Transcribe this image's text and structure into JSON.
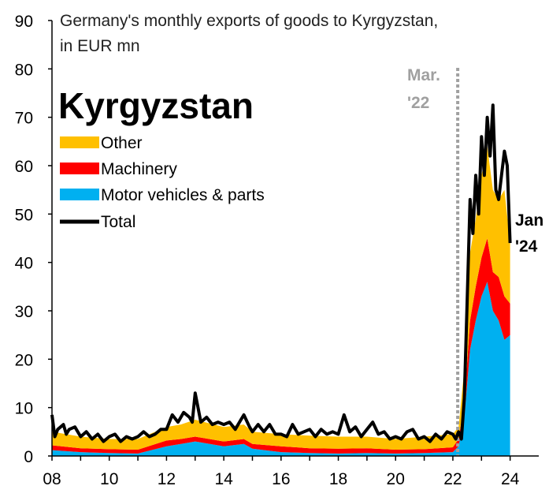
{
  "chart_data": {
    "type": "area",
    "title_lines": [
      "Germany's monthly exports of goods to Kyrgyzstan,",
      "in EUR mn"
    ],
    "panel_title": "Kyrgyzstan",
    "xlabel": "",
    "ylabel": "",
    "xlim": [
      2008,
      2025
    ],
    "ylim": [
      0,
      90
    ],
    "x_ticks": [
      2008,
      2010,
      2012,
      2014,
      2016,
      2018,
      2020,
      2022,
      2024
    ],
    "x_tick_labels": [
      "08",
      "10",
      "12",
      "14",
      "16",
      "18",
      "20",
      "22",
      "24"
    ],
    "y_ticks": [
      0,
      10,
      20,
      30,
      40,
      50,
      60,
      70,
      80,
      90
    ],
    "y_tick_labels": [
      "0",
      "10",
      "20",
      "30",
      "40",
      "50",
      "60",
      "70",
      "80",
      "90"
    ],
    "grid": false,
    "legend_placement": "top-left",
    "legend": [
      {
        "label": "Other",
        "type": "area",
        "color": "#FFC000"
      },
      {
        "label": "Machinery",
        "type": "area",
        "color": "#FF0000"
      },
      {
        "label": "Motor vehicles & parts",
        "type": "area",
        "color": "#00B0F0"
      },
      {
        "label": "Total",
        "type": "line",
        "color": "#000000"
      }
    ],
    "stack_order": [
      "Motor vehicles & parts",
      "Machinery",
      "Other"
    ],
    "series": [
      {
        "name": "Motor vehicles & parts",
        "color": "#00B0F0",
        "x": [
          2008.0,
          2009.0,
          2010.0,
          2011.0,
          2012.0,
          2012.5,
          2013.0,
          2014.0,
          2014.7,
          2015.0,
          2016.0,
          2017.0,
          2018.0,
          2019.0,
          2020.0,
          2021.0,
          2022.0,
          2022.2,
          2022.4,
          2022.6,
          2022.8,
          2023.0,
          2023.2,
          2023.4,
          2023.6,
          2023.8,
          2024.0
        ],
        "values": [
          1.2,
          0.8,
          0.6,
          0.5,
          2.0,
          2.5,
          3.0,
          2.0,
          2.5,
          1.5,
          0.8,
          0.6,
          0.5,
          0.6,
          0.5,
          0.6,
          0.8,
          2.0,
          8.0,
          22.0,
          28.0,
          33.0,
          36.0,
          30.0,
          28.0,
          24.0,
          25.0
        ]
      },
      {
        "name": "Machinery",
        "color": "#FF0000",
        "x": [
          2008.0,
          2009.0,
          2010.0,
          2011.0,
          2012.0,
          2012.5,
          2013.0,
          2014.0,
          2014.7,
          2015.0,
          2016.0,
          2017.0,
          2018.0,
          2019.0,
          2020.0,
          2021.0,
          2022.0,
          2022.2,
          2022.4,
          2022.6,
          2022.8,
          2023.0,
          2023.2,
          2023.4,
          2023.6,
          2023.8,
          2024.0
        ],
        "values": [
          1.0,
          0.8,
          0.8,
          0.8,
          1.2,
          1.0,
          1.0,
          1.0,
          1.0,
          1.0,
          1.2,
          1.0,
          1.0,
          1.0,
          0.8,
          0.8,
          1.0,
          1.5,
          3.0,
          6.0,
          7.0,
          8.0,
          9.0,
          8.0,
          9.0,
          9.0,
          6.5
        ]
      },
      {
        "name": "Other",
        "color": "#FFC000",
        "x": [
          2008.0,
          2009.0,
          2010.0,
          2011.0,
          2012.0,
          2012.5,
          2013.0,
          2014.0,
          2014.7,
          2015.0,
          2016.0,
          2017.0,
          2018.0,
          2019.0,
          2020.0,
          2021.0,
          2022.0,
          2022.2,
          2022.4,
          2022.6,
          2022.8,
          2023.0,
          2023.2,
          2023.4,
          2023.6,
          2023.8,
          2024.0
        ],
        "values": [
          2.8,
          2.4,
          2.1,
          2.2,
          2.8,
          3.0,
          3.5,
          3.0,
          3.0,
          2.5,
          2.5,
          2.6,
          2.5,
          2.4,
          2.2,
          2.6,
          2.7,
          2.5,
          7.0,
          14.0,
          14.0,
          17.0,
          19.0,
          17.0,
          16.0,
          22.0,
          12.5
        ]
      },
      {
        "name": "Total",
        "color": "#000000",
        "x": [
          2008.0,
          2008.1,
          2008.2,
          2008.4,
          2008.5,
          2008.6,
          2008.8,
          2009.0,
          2009.2,
          2009.4,
          2009.6,
          2009.8,
          2010.0,
          2010.2,
          2010.4,
          2010.6,
          2010.8,
          2011.0,
          2011.2,
          2011.4,
          2011.6,
          2011.8,
          2012.0,
          2012.2,
          2012.4,
          2012.6,
          2012.8,
          2012.9,
          2013.0,
          2013.2,
          2013.4,
          2013.6,
          2013.8,
          2014.0,
          2014.2,
          2014.4,
          2014.6,
          2014.7,
          2014.9,
          2015.0,
          2015.2,
          2015.4,
          2015.6,
          2015.8,
          2016.0,
          2016.2,
          2016.4,
          2016.6,
          2016.8,
          2017.0,
          2017.2,
          2017.4,
          2017.6,
          2017.8,
          2018.0,
          2018.2,
          2018.4,
          2018.6,
          2018.8,
          2019.0,
          2019.2,
          2019.4,
          2019.6,
          2019.8,
          2020.0,
          2020.2,
          2020.4,
          2020.6,
          2020.8,
          2021.0,
          2021.2,
          2021.4,
          2021.6,
          2021.8,
          2022.0,
          2022.1,
          2022.2,
          2022.3,
          2022.4,
          2022.5,
          2022.6,
          2022.7,
          2022.8,
          2022.9,
          2023.0,
          2023.1,
          2023.2,
          2023.3,
          2023.4,
          2023.5,
          2023.6,
          2023.7,
          2023.8,
          2023.9,
          2024.0
        ],
        "values": [
          8.5,
          4.0,
          5.5,
          6.5,
          4.5,
          5.5,
          6.0,
          4.0,
          5.0,
          3.5,
          4.5,
          3.0,
          4.0,
          4.5,
          3.0,
          4.0,
          3.5,
          4.0,
          5.0,
          4.0,
          4.5,
          5.5,
          5.5,
          8.5,
          7.0,
          9.0,
          8.0,
          7.0,
          13.0,
          7.0,
          8.0,
          6.5,
          7.0,
          6.5,
          7.0,
          5.5,
          7.5,
          8.5,
          6.0,
          5.0,
          6.5,
          5.0,
          6.5,
          4.5,
          4.5,
          4.0,
          6.5,
          4.5,
          5.0,
          5.5,
          4.0,
          5.5,
          4.5,
          5.0,
          4.5,
          8.5,
          5.0,
          6.0,
          4.0,
          5.5,
          7.0,
          4.5,
          5.0,
          3.5,
          4.0,
          3.5,
          5.0,
          5.5,
          3.5,
          4.0,
          3.0,
          4.5,
          3.5,
          5.0,
          4.5,
          3.5,
          5.0,
          3.5,
          12.0,
          32.0,
          53.0,
          46.0,
          58.0,
          50.0,
          66.0,
          58.0,
          70.0,
          62.0,
          72.5,
          55.0,
          53.0,
          58.0,
          63.0,
          60.0,
          44.0
        ]
      }
    ],
    "annotations": [
      {
        "label_lines": [
          "Mar.",
          "'22"
        ],
        "x": 2022.17,
        "style": "vertical-dotted-line",
        "color": "#A0A0A0"
      },
      {
        "label_lines": [
          "Jan",
          "'24"
        ],
        "x": 2024.0,
        "color": "#000000"
      }
    ]
  }
}
